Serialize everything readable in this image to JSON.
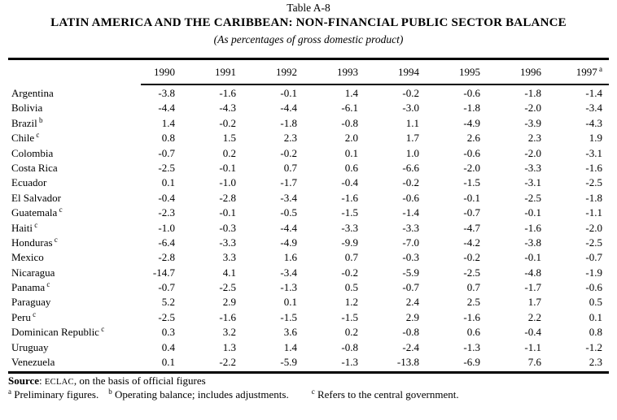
{
  "header": {
    "table_number": "Table A-8",
    "title": "LATIN AMERICA AND THE CARIBBEAN: NON-FINANCIAL PUBLIC SECTOR BALANCE",
    "subtitle": "(As percentages of gross domestic product)"
  },
  "table": {
    "columns": [
      {
        "label": "1990"
      },
      {
        "label": "1991"
      },
      {
        "label": "1992"
      },
      {
        "label": "1993"
      },
      {
        "label": "1994"
      },
      {
        "label": "1995"
      },
      {
        "label": "1996"
      },
      {
        "label": "1997",
        "sup": "a"
      }
    ],
    "rows": [
      {
        "name": "Argentina",
        "values": [
          "-3.8",
          "-1.6",
          "-0.1",
          "1.4",
          "-0.2",
          "-0.6",
          "-1.8",
          "-1.4"
        ]
      },
      {
        "name": "Bolivia",
        "values": [
          "-4.4",
          "-4.3",
          "-4.4",
          "-6.1",
          "-3.0",
          "-1.8",
          "-2.0",
          "-3.4"
        ]
      },
      {
        "name": "Brazil",
        "sup": "b",
        "values": [
          "1.4",
          "-0.2",
          "-1.8",
          "-0.8",
          "1.1",
          "-4.9",
          "-3.9",
          "-4.3"
        ]
      },
      {
        "name": "Chile",
        "sup": "c",
        "values": [
          "0.8",
          "1.5",
          "2.3",
          "2.0",
          "1.7",
          "2.6",
          "2.3",
          "1.9"
        ]
      },
      {
        "name": "Colombia",
        "values": [
          "-0.7",
          "0.2",
          "-0.2",
          "0.1",
          "1.0",
          "-0.6",
          "-2.0",
          "-3.1"
        ]
      },
      {
        "name": "Costa Rica",
        "values": [
          "-2.5",
          "-0.1",
          "0.7",
          "0.6",
          "-6.6",
          "-2.0",
          "-3.3",
          "-1.6"
        ]
      },
      {
        "name": "Ecuador",
        "values": [
          "0.1",
          "-1.0",
          "-1.7",
          "-0.4",
          "-0.2",
          "-1.5",
          "-3.1",
          "-2.5"
        ]
      },
      {
        "name": "El Salvador",
        "values": [
          "-0.4",
          "-2.8",
          "-3.4",
          "-1.6",
          "-0.6",
          "-0.1",
          "-2.5",
          "-1.8"
        ]
      },
      {
        "name": "Guatemala",
        "sup": "c",
        "values": [
          "-2.3",
          "-0.1",
          "-0.5",
          "-1.5",
          "-1.4",
          "-0.7",
          "-0.1",
          "-1.1"
        ]
      },
      {
        "name": "Haiti",
        "sup": "c",
        "values": [
          "-1.0",
          "-0.3",
          "-4.4",
          "-3.3",
          "-3.3",
          "-4.7",
          "-1.6",
          "-2.0"
        ]
      },
      {
        "name": "Honduras",
        "sup": "c",
        "values": [
          "-6.4",
          "-3.3",
          "-4.9",
          "-9.9",
          "-7.0",
          "-4.2",
          "-3.8",
          "-2.5"
        ]
      },
      {
        "name": "Mexico",
        "values": [
          "-2.8",
          "3.3",
          "1.6",
          "0.7",
          "-0.3",
          "-0.2",
          "-0.1",
          "-0.7"
        ]
      },
      {
        "name": "Nicaragua",
        "values": [
          "-14.7",
          "4.1",
          "-3.4",
          "-0.2",
          "-5.9",
          "-2.5",
          "-4.8",
          "-1.9"
        ]
      },
      {
        "name": "Panama",
        "sup": "c",
        "values": [
          "-0.7",
          "-2.5",
          "-1.3",
          "0.5",
          "-0.7",
          "0.7",
          "-1.7",
          "-0.6"
        ]
      },
      {
        "name": "Paraguay",
        "values": [
          "5.2",
          "2.9",
          "0.1",
          "1.2",
          "2.4",
          "2.5",
          "1.7",
          "0.5"
        ]
      },
      {
        "name": "Peru",
        "sup": "c",
        "values": [
          "-2.5",
          "-1.6",
          "-1.5",
          "-1.5",
          "2.9",
          "-1.6",
          "2.2",
          "0.1"
        ]
      },
      {
        "name": "Dominican Republic",
        "sup": "c",
        "values": [
          "0.3",
          "3.2",
          "3.6",
          "0.2",
          "-0.8",
          "0.6",
          "-0.4",
          "0.8"
        ]
      },
      {
        "name": "Uruguay",
        "values": [
          "0.4",
          "1.3",
          "1.4",
          "-0.8",
          "-2.4",
          "-1.3",
          "-1.1",
          "-1.2"
        ]
      },
      {
        "name": "Venezuela",
        "values": [
          "0.1",
          "-2.2",
          "-5.9",
          "-1.3",
          "-13.8",
          "-6.9",
          "7.6",
          "2.3"
        ]
      }
    ]
  },
  "footer": {
    "source_label": "Source",
    "source_sep": ": ",
    "source_org": "ECLAC",
    "source_rest": ", on the basis of official figures",
    "footnotes": [
      {
        "marker": "a",
        "text": "Preliminary figures."
      },
      {
        "marker": "b",
        "text": "Operating balance; includes adjustments."
      },
      {
        "marker": "c",
        "text": "Refers to the central government."
      }
    ]
  }
}
